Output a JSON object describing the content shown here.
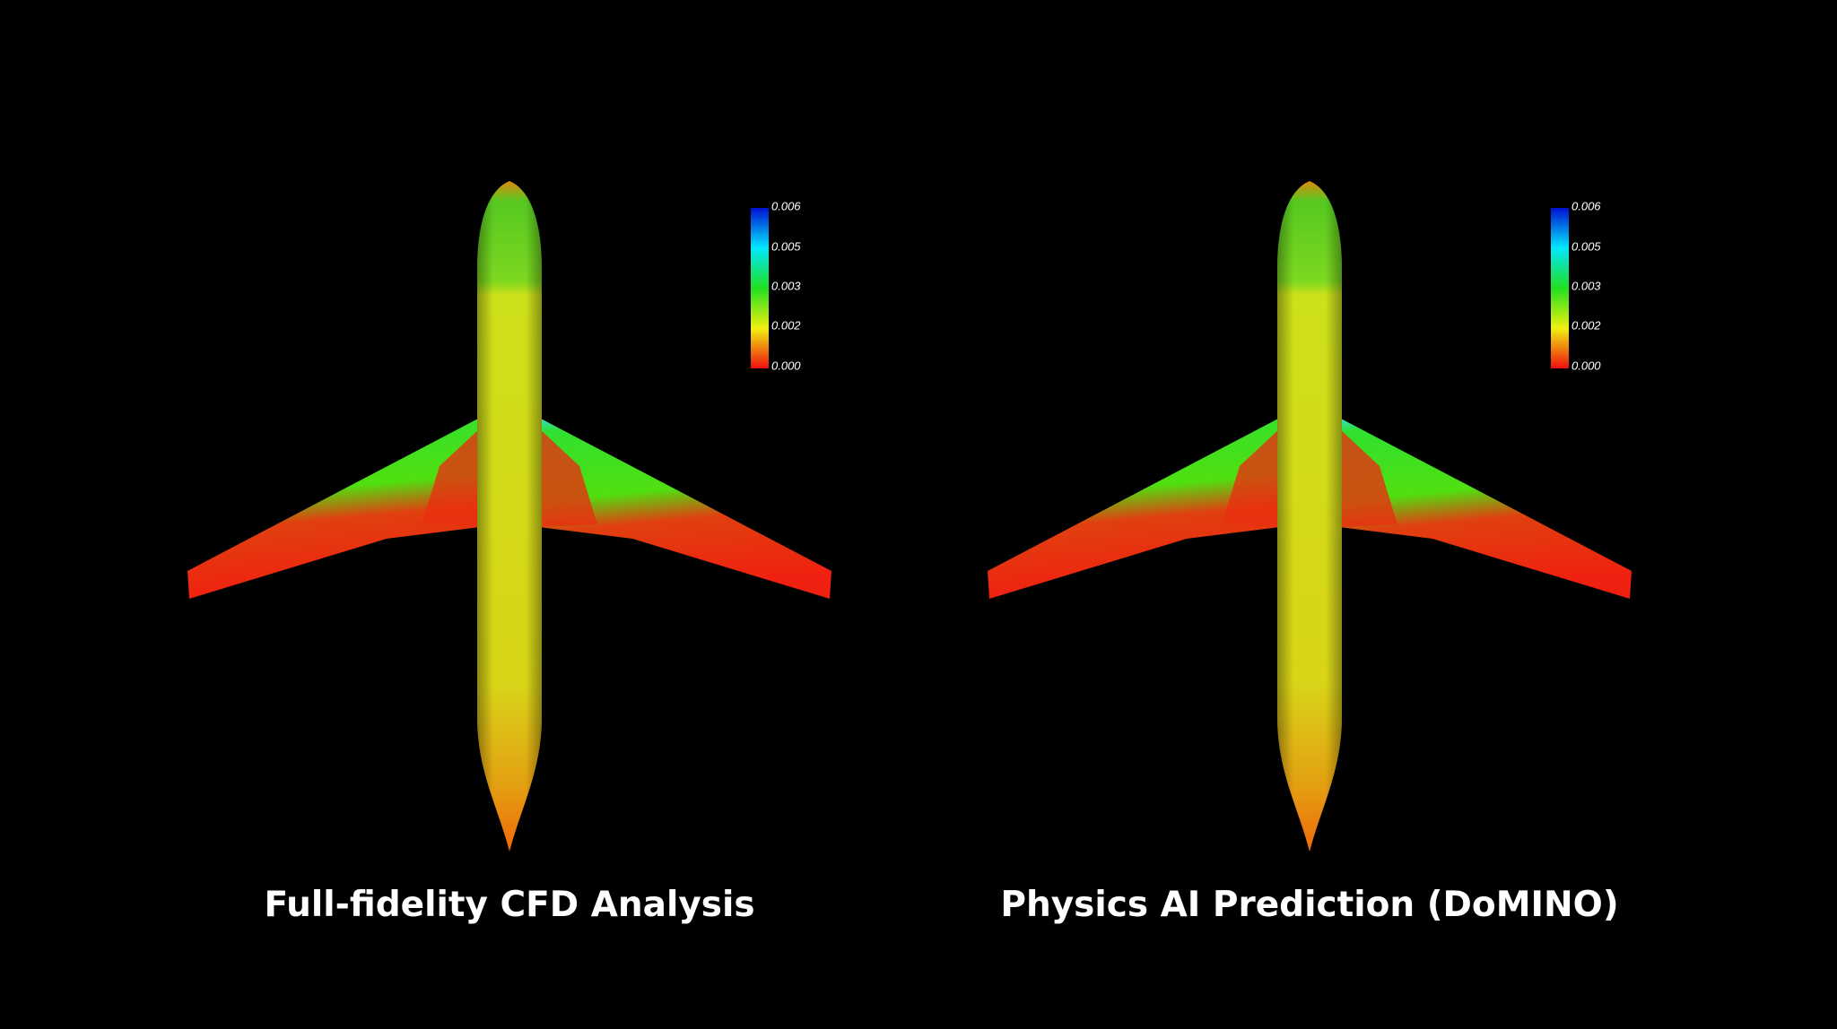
{
  "panels": [
    {
      "caption": "Full-fidelity CFD Analysis",
      "colorbar": {
        "ticks": [
          "0.006",
          "0.005",
          "0.003",
          "0.002",
          "0.000"
        ]
      }
    },
    {
      "caption": "Physics AI Prediction (DoMINO)",
      "colorbar": {
        "ticks": [
          "0.006",
          "0.005",
          "0.003",
          "0.002",
          "0.000"
        ]
      }
    }
  ]
}
